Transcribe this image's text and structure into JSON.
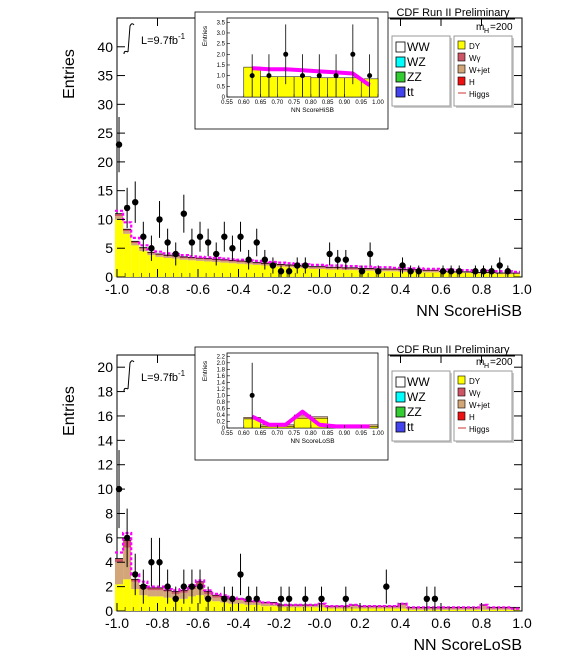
{
  "colors": {
    "ww": "#ffffff",
    "wz": "#00ffff",
    "zz": "#33cc33",
    "tt": "#4444ee",
    "dy": "#ffff00",
    "wgamma": "#cc5566",
    "wjet": "#d2a679",
    "h": "#ee1111",
    "higgs": "#ff00ff",
    "data": "#000000"
  },
  "chart_data": [
    {
      "type": "bar",
      "id": "hisb",
      "xlabel": "NN ScoreHiSB",
      "ylabel": "Entries",
      "xlim": [
        -1.0,
        1.0
      ],
      "ylim": [
        0,
        45
      ],
      "x_ticks": [
        "-1.0",
        "-0.8",
        "-0.6",
        "-0.4",
        "-0.2",
        "-0.0",
        "0.2",
        "0.4",
        "0.6",
        "0.8",
        "1.0"
      ],
      "y_ticks": [
        "0",
        "5",
        "10",
        "15",
        "20",
        "25",
        "30",
        "35",
        "40"
      ],
      "header": "CDF Run II Preliminary",
      "lumi": "L=9.7fb",
      "lumi_sup": "-1",
      "mass_label": "m",
      "mass_sub": "H",
      "mass_value": "=200",
      "legend_left": [
        "WW",
        "WZ",
        "ZZ",
        "tt"
      ],
      "legend_right": [
        "DY",
        "Wγ",
        "W+jet",
        "H",
        "Higgs"
      ],
      "bin_centers": [
        -0.99,
        -0.95,
        -0.91,
        -0.87,
        -0.83,
        -0.79,
        -0.75,
        -0.71,
        -0.67,
        -0.63,
        -0.59,
        -0.55,
        -0.51,
        -0.47,
        -0.43,
        -0.39,
        -0.35,
        -0.31,
        -0.27,
        -0.23,
        -0.19,
        -0.15,
        -0.11,
        -0.07,
        -0.03,
        0.01,
        0.05,
        0.09,
        0.13,
        0.17,
        0.21,
        0.25,
        0.29,
        0.33,
        0.37,
        0.41,
        0.45,
        0.49,
        0.53,
        0.57,
        0.61,
        0.65,
        0.69,
        0.73,
        0.77,
        0.81,
        0.85,
        0.89,
        0.93,
        0.97
      ],
      "series": [
        {
          "name": "DY",
          "values": [
            10.0,
            7.5,
            5.5,
            4.5,
            3.8,
            3.5,
            3.3,
            3.2,
            3.0,
            2.9,
            2.8,
            2.7,
            2.6,
            2.5,
            2.4,
            2.3,
            2.2,
            2.1,
            2.0,
            1.9,
            1.8,
            1.7,
            1.6,
            1.5,
            1.4,
            1.4,
            1.3,
            1.3,
            1.2,
            1.2,
            1.1,
            1.1,
            1.0,
            1.0,
            1.0,
            0.9,
            0.9,
            0.9,
            0.8,
            0.8,
            0.8,
            0.7,
            0.7,
            0.7,
            0.6,
            0.6,
            0.6,
            0.5,
            0.5,
            0.5
          ]
        },
        {
          "name": "W+jet",
          "values": [
            0.6,
            0.5,
            0.4,
            0.4,
            0.3,
            0.3,
            0.3,
            0.3,
            0.3,
            0.3,
            0.3,
            0.3,
            0.3,
            0.3,
            0.3,
            0.3,
            0.3,
            0.2,
            0.2,
            0.2,
            0.2,
            0.2,
            0.2,
            0.2,
            0.2,
            0.2,
            0.2,
            0.2,
            0.2,
            0.2,
            0.2,
            0.2,
            0.2,
            0.2,
            0.2,
            0.2,
            0.2,
            0.2,
            0.2,
            0.2,
            0.1,
            0.1,
            0.1,
            0.1,
            0.1,
            0.1,
            0.1,
            0.1,
            0.1,
            0.1
          ]
        },
        {
          "name": "Wγ",
          "values": [
            0.4,
            0.3,
            0.3,
            0.2,
            0.2,
            0.2,
            0.2,
            0.2,
            0.2,
            0.2,
            0.2,
            0.2,
            0.2,
            0.2,
            0.2,
            0.2,
            0.2,
            0.2,
            0.2,
            0.2,
            0.2,
            0.2,
            0.2,
            0.2,
            0.2,
            0.2,
            0.2,
            0.2,
            0.2,
            0.2,
            0.2,
            0.2,
            0.2,
            0.2,
            0.2,
            0.2,
            0.2,
            0.2,
            0.2,
            0.2,
            0.1,
            0.1,
            0.1,
            0.1,
            0.1,
            0.1,
            0.1,
            0.1,
            0.1,
            0.1
          ]
        }
      ],
      "higgs": [
        11.5,
        9.5,
        6.8,
        5.5,
        4.8,
        4.4,
        4.1,
        4.0,
        3.8,
        3.6,
        3.5,
        3.4,
        3.3,
        3.2,
        3.1,
        3.0,
        2.9,
        2.8,
        2.7,
        2.6,
        2.5,
        2.4,
        2.3,
        2.2,
        2.1,
        2.1,
        2.0,
        2.0,
        1.9,
        1.9,
        1.8,
        1.8,
        1.7,
        1.7,
        1.6,
        1.6,
        1.5,
        1.5,
        1.4,
        1.4,
        1.3,
        1.3,
        1.2,
        1.2,
        1.1,
        1.1,
        1.0,
        1.0,
        1.0,
        0.9
      ],
      "data_points": [
        {
          "x": -0.99,
          "y": 23,
          "err": 4.8
        },
        {
          "x": -0.95,
          "y": 12,
          "err": 3.5
        },
        {
          "x": -0.91,
          "y": 13,
          "err": 3.6
        },
        {
          "x": -0.87,
          "y": 7,
          "err": 2.6
        },
        {
          "x": -0.83,
          "y": 5,
          "err": 2.2
        },
        {
          "x": -0.79,
          "y": 10,
          "err": 3.2
        },
        {
          "x": -0.75,
          "y": 6,
          "err": 2.4
        },
        {
          "x": -0.71,
          "y": 4,
          "err": 2.0
        },
        {
          "x": -0.67,
          "y": 11,
          "err": 3.3
        },
        {
          "x": -0.63,
          "y": 6,
          "err": 2.4
        },
        {
          "x": -0.59,
          "y": 7,
          "err": 2.6
        },
        {
          "x": -0.55,
          "y": 6,
          "err": 2.4
        },
        {
          "x": -0.51,
          "y": 4,
          "err": 2.0
        },
        {
          "x": -0.47,
          "y": 7,
          "err": 2.6
        },
        {
          "x": -0.43,
          "y": 5,
          "err": 2.2
        },
        {
          "x": -0.39,
          "y": 7,
          "err": 2.6
        },
        {
          "x": -0.35,
          "y": 3,
          "err": 1.7
        },
        {
          "x": -0.31,
          "y": 6,
          "err": 2.4
        },
        {
          "x": -0.27,
          "y": 3,
          "err": 1.7
        },
        {
          "x": -0.23,
          "y": 2,
          "err": 1.4
        },
        {
          "x": -0.19,
          "y": 1,
          "err": 1.0
        },
        {
          "x": -0.15,
          "y": 1,
          "err": 1.0
        },
        {
          "x": -0.11,
          "y": 2,
          "err": 1.4
        },
        {
          "x": -0.07,
          "y": 2,
          "err": 1.4
        },
        {
          "x": 0.05,
          "y": 4,
          "err": 2.0
        },
        {
          "x": 0.09,
          "y": 3,
          "err": 1.7
        },
        {
          "x": 0.13,
          "y": 3,
          "err": 1.7
        },
        {
          "x": 0.21,
          "y": 1,
          "err": 1.0
        },
        {
          "x": 0.25,
          "y": 4,
          "err": 2.0
        },
        {
          "x": 0.29,
          "y": 1,
          "err": 1.0
        },
        {
          "x": 0.41,
          "y": 2,
          "err": 1.4
        },
        {
          "x": 0.45,
          "y": 1,
          "err": 1.0
        },
        {
          "x": 0.49,
          "y": 1,
          "err": 1.0
        },
        {
          "x": 0.61,
          "y": 1,
          "err": 1.0
        },
        {
          "x": 0.65,
          "y": 1,
          "err": 1.0
        },
        {
          "x": 0.69,
          "y": 1,
          "err": 1.0
        },
        {
          "x": 0.77,
          "y": 1,
          "err": 1.0
        },
        {
          "x": 0.81,
          "y": 1,
          "err": 1.0
        },
        {
          "x": 0.85,
          "y": 1,
          "err": 1.0
        },
        {
          "x": 0.89,
          "y": 2,
          "err": 1.4
        },
        {
          "x": 0.93,
          "y": 1,
          "err": 1.0
        }
      ],
      "inset": {
        "xlabel": "NN ScoreHiSB",
        "ylabel": "Entries",
        "xlim": [
          0.55,
          1.0
        ],
        "ylim": [
          0,
          3.7
        ],
        "x_ticks": [
          "0.55",
          "0.60",
          "0.65",
          "0.70",
          "0.75",
          "0.80",
          "0.85",
          "0.90",
          "0.95",
          "1.00"
        ],
        "y_ticks": [
          "0",
          "0.5",
          "1.0",
          "1.5",
          "2.0",
          "2.5",
          "3.0",
          "3.5"
        ],
        "bin_edges": [
          0.6,
          0.65,
          0.7,
          0.75,
          0.8,
          0.85,
          0.9,
          0.95,
          1.0
        ],
        "dy": [
          1.4,
          0.95,
          0.95,
          0.95,
          0.9,
          0.9,
          0.9,
          0.85
        ],
        "higgs": [
          1.35,
          1.3,
          1.3,
          1.25,
          1.2,
          1.15,
          1.1,
          0.55
        ],
        "data_points": [
          {
            "x": 0.625,
            "y": 1.0,
            "err": 1.0
          },
          {
            "x": 0.675,
            "y": 1.0,
            "err": 1.0
          },
          {
            "x": 0.725,
            "y": 2.0,
            "err": 1.4
          },
          {
            "x": 0.775,
            "y": 1.0,
            "err": 1.0
          },
          {
            "x": 0.825,
            "y": 1.0,
            "err": 1.0
          },
          {
            "x": 0.875,
            "y": 1.0,
            "err": 1.0
          },
          {
            "x": 0.925,
            "y": 2.0,
            "err": 1.4
          },
          {
            "x": 0.975,
            "y": 1.0,
            "err": 1.0
          }
        ]
      }
    },
    {
      "type": "bar",
      "id": "losb",
      "xlabel": "NN ScoreLoSB",
      "ylabel": "Entries",
      "xlim": [
        -1.0,
        1.0
      ],
      "ylim": [
        0,
        21
      ],
      "x_ticks": [
        "-1.0",
        "-0.8",
        "-0.6",
        "-0.4",
        "-0.2",
        "-0.0",
        "0.2",
        "0.4",
        "0.6",
        "0.8",
        "1.0"
      ],
      "y_ticks": [
        "0",
        "2",
        "4",
        "6",
        "8",
        "10",
        "12",
        "14",
        "16",
        "18",
        "20"
      ],
      "header": "CDF Run II Preliminary",
      "lumi": "L=9.7fb",
      "lumi_sup": "-1",
      "mass_label": "m",
      "mass_sub": "H",
      "mass_value": "=200",
      "legend_left": [
        "WW",
        "WZ",
        "ZZ",
        "tt"
      ],
      "legend_right": [
        "DY",
        "Wγ",
        "W+jet",
        "H",
        "Higgs"
      ],
      "bin_centers": [
        -0.99,
        -0.95,
        -0.91,
        -0.87,
        -0.83,
        -0.79,
        -0.75,
        -0.71,
        -0.67,
        -0.63,
        -0.59,
        -0.55,
        -0.51,
        -0.47,
        -0.43,
        -0.39,
        -0.35,
        -0.31,
        -0.27,
        -0.23,
        -0.19,
        -0.15,
        -0.11,
        -0.07,
        -0.03,
        0.01,
        0.05,
        0.09,
        0.13,
        0.17,
        0.21,
        0.25,
        0.29,
        0.33,
        0.37,
        0.41,
        0.45,
        0.49,
        0.53,
        0.57,
        0.61,
        0.65,
        0.69,
        0.73,
        0.77,
        0.81,
        0.85,
        0.89,
        0.93,
        0.97
      ],
      "series": [
        {
          "name": "DY",
          "values": [
            2.2,
            2.6,
            1.8,
            1.3,
            1.2,
            1.2,
            1.1,
            1.0,
            1.0,
            1.2,
            1.3,
            1.0,
            0.8,
            0.7,
            0.6,
            0.6,
            0.5,
            0.5,
            0.4,
            0.4,
            0.3,
            0.3,
            0.3,
            0.3,
            0.3,
            0.3,
            0.2,
            0.2,
            0.2,
            0.2,
            0.2,
            0.2,
            0.2,
            0.2,
            0.2,
            0.2,
            0.1,
            0.1,
            0.1,
            0.1,
            0.1,
            0.1,
            0.1,
            0.1,
            0.1,
            0.1,
            0.1,
            0.1,
            0.1,
            0.1
          ]
        },
        {
          "name": "W+jet",
          "values": [
            1.8,
            2.6,
            0.6,
            0.5,
            0.5,
            0.5,
            0.5,
            0.4,
            0.5,
            0.6,
            0.8,
            0.4,
            0.3,
            0.3,
            0.3,
            0.3,
            0.2,
            0.2,
            0.2,
            0.2,
            0.1,
            0.1,
            0.1,
            0.1,
            0.1,
            0.2,
            0.1,
            0.1,
            0.1,
            0.2,
            0.1,
            0.1,
            0.1,
            0.1,
            0.1,
            0.3,
            0.1,
            0.1,
            0.1,
            0.1,
            0.1,
            0.1,
            0.1,
            0.1,
            0.1,
            0.3,
            0.1,
            0.1,
            0.1,
            0.1
          ]
        },
        {
          "name": "Wγ",
          "values": [
            0.3,
            0.6,
            0.2,
            0.3,
            0.2,
            0.2,
            0.1,
            0.2,
            0.2,
            0.2,
            0.3,
            0.2,
            0.2,
            0.2,
            0.1,
            0.1,
            0.1,
            0.1,
            0.1,
            0.1,
            0.1,
            0.1,
            0.1,
            0.1,
            0.1,
            0.1,
            0.1,
            0.1,
            0.1,
            0.1,
            0.1,
            0.1,
            0.1,
            0.1,
            0.1,
            0.1,
            0.1,
            0.1,
            0.1,
            0.1,
            0.1,
            0.1,
            0.1,
            0.1,
            0.1,
            0.1,
            0.1,
            0.1,
            0.1,
            0.1
          ]
        }
      ],
      "higgs": [
        4.8,
        6.4,
        3.0,
        2.4,
        2.0,
        2.0,
        1.8,
        1.7,
        1.8,
        2.1,
        2.5,
        1.7,
        1.4,
        1.3,
        1.1,
        1.0,
        0.9,
        0.8,
        0.7,
        0.6,
        0.5,
        0.5,
        0.5,
        0.5,
        0.5,
        0.6,
        0.4,
        0.4,
        0.4,
        0.5,
        0.4,
        0.4,
        0.4,
        0.4,
        0.4,
        0.6,
        0.3,
        0.3,
        0.3,
        0.3,
        0.3,
        0.3,
        0.3,
        0.3,
        0.3,
        0.5,
        0.3,
        0.3,
        0.3,
        0.2
      ],
      "data_points": [
        {
          "x": -0.99,
          "y": 10,
          "err": 3.2
        },
        {
          "x": -0.95,
          "y": 6,
          "err": 2.4
        },
        {
          "x": -0.91,
          "y": 3,
          "err": 1.7
        },
        {
          "x": -0.87,
          "y": 2,
          "err": 1.4
        },
        {
          "x": -0.83,
          "y": 4,
          "err": 2.0
        },
        {
          "x": -0.79,
          "y": 4,
          "err": 2.0
        },
        {
          "x": -0.75,
          "y": 2,
          "err": 1.4
        },
        {
          "x": -0.71,
          "y": 1,
          "err": 1.0
        },
        {
          "x": -0.67,
          "y": 2,
          "err": 1.4
        },
        {
          "x": -0.63,
          "y": 2,
          "err": 1.4
        },
        {
          "x": -0.59,
          "y": 2,
          "err": 1.4
        },
        {
          "x": -0.55,
          "y": 1,
          "err": 1.0
        },
        {
          "x": -0.47,
          "y": 1,
          "err": 1.0
        },
        {
          "x": -0.43,
          "y": 1,
          "err": 1.0
        },
        {
          "x": -0.39,
          "y": 3,
          "err": 1.7
        },
        {
          "x": -0.35,
          "y": 1,
          "err": 1.0
        },
        {
          "x": -0.31,
          "y": 1,
          "err": 1.0
        },
        {
          "x": -0.19,
          "y": 1,
          "err": 1.0
        },
        {
          "x": -0.15,
          "y": 1,
          "err": 1.0
        },
        {
          "x": -0.07,
          "y": 1,
          "err": 1.0
        },
        {
          "x": 0.01,
          "y": 1,
          "err": 1.0
        },
        {
          "x": 0.13,
          "y": 1,
          "err": 1.0
        },
        {
          "x": 0.33,
          "y": 2,
          "err": 1.4
        },
        {
          "x": 0.53,
          "y": 1,
          "err": 1.0
        },
        {
          "x": 0.57,
          "y": 1,
          "err": 1.0
        }
      ],
      "inset": {
        "xlabel": "NN ScoreLoSB",
        "ylabel": "Entries",
        "xlim": [
          0.55,
          1.0
        ],
        "ylim": [
          0,
          2.3
        ],
        "x_ticks": [
          "0.55",
          "0.60",
          "0.65",
          "0.70",
          "0.75",
          "0.80",
          "0.85",
          "0.90",
          "0.95",
          "1.00"
        ],
        "y_ticks": [
          "0",
          "0.2",
          "0.4",
          "0.6",
          "0.8",
          "1.0",
          "1.2",
          "1.4",
          "1.6",
          "1.8",
          "2.0",
          "2.2"
        ],
        "bin_edges": [
          0.6,
          0.65,
          0.7,
          0.75,
          0.8,
          0.85,
          0.9,
          0.95,
          1.0
        ],
        "dy": [
          0.28,
          0.05,
          0.05,
          0.3,
          0.3,
          0.05,
          0.05,
          0.05
        ],
        "wjet": [
          0.05,
          0.05,
          0.05,
          0.1,
          0.05,
          0.05,
          0.05,
          0.05
        ],
        "higgs": [
          0.35,
          0.1,
          0.1,
          0.5,
          0.1,
          0.05,
          0.05,
          0.05
        ],
        "data_points": [
          {
            "x": 0.625,
            "y": 1.0,
            "err": 1.0
          }
        ]
      }
    }
  ]
}
